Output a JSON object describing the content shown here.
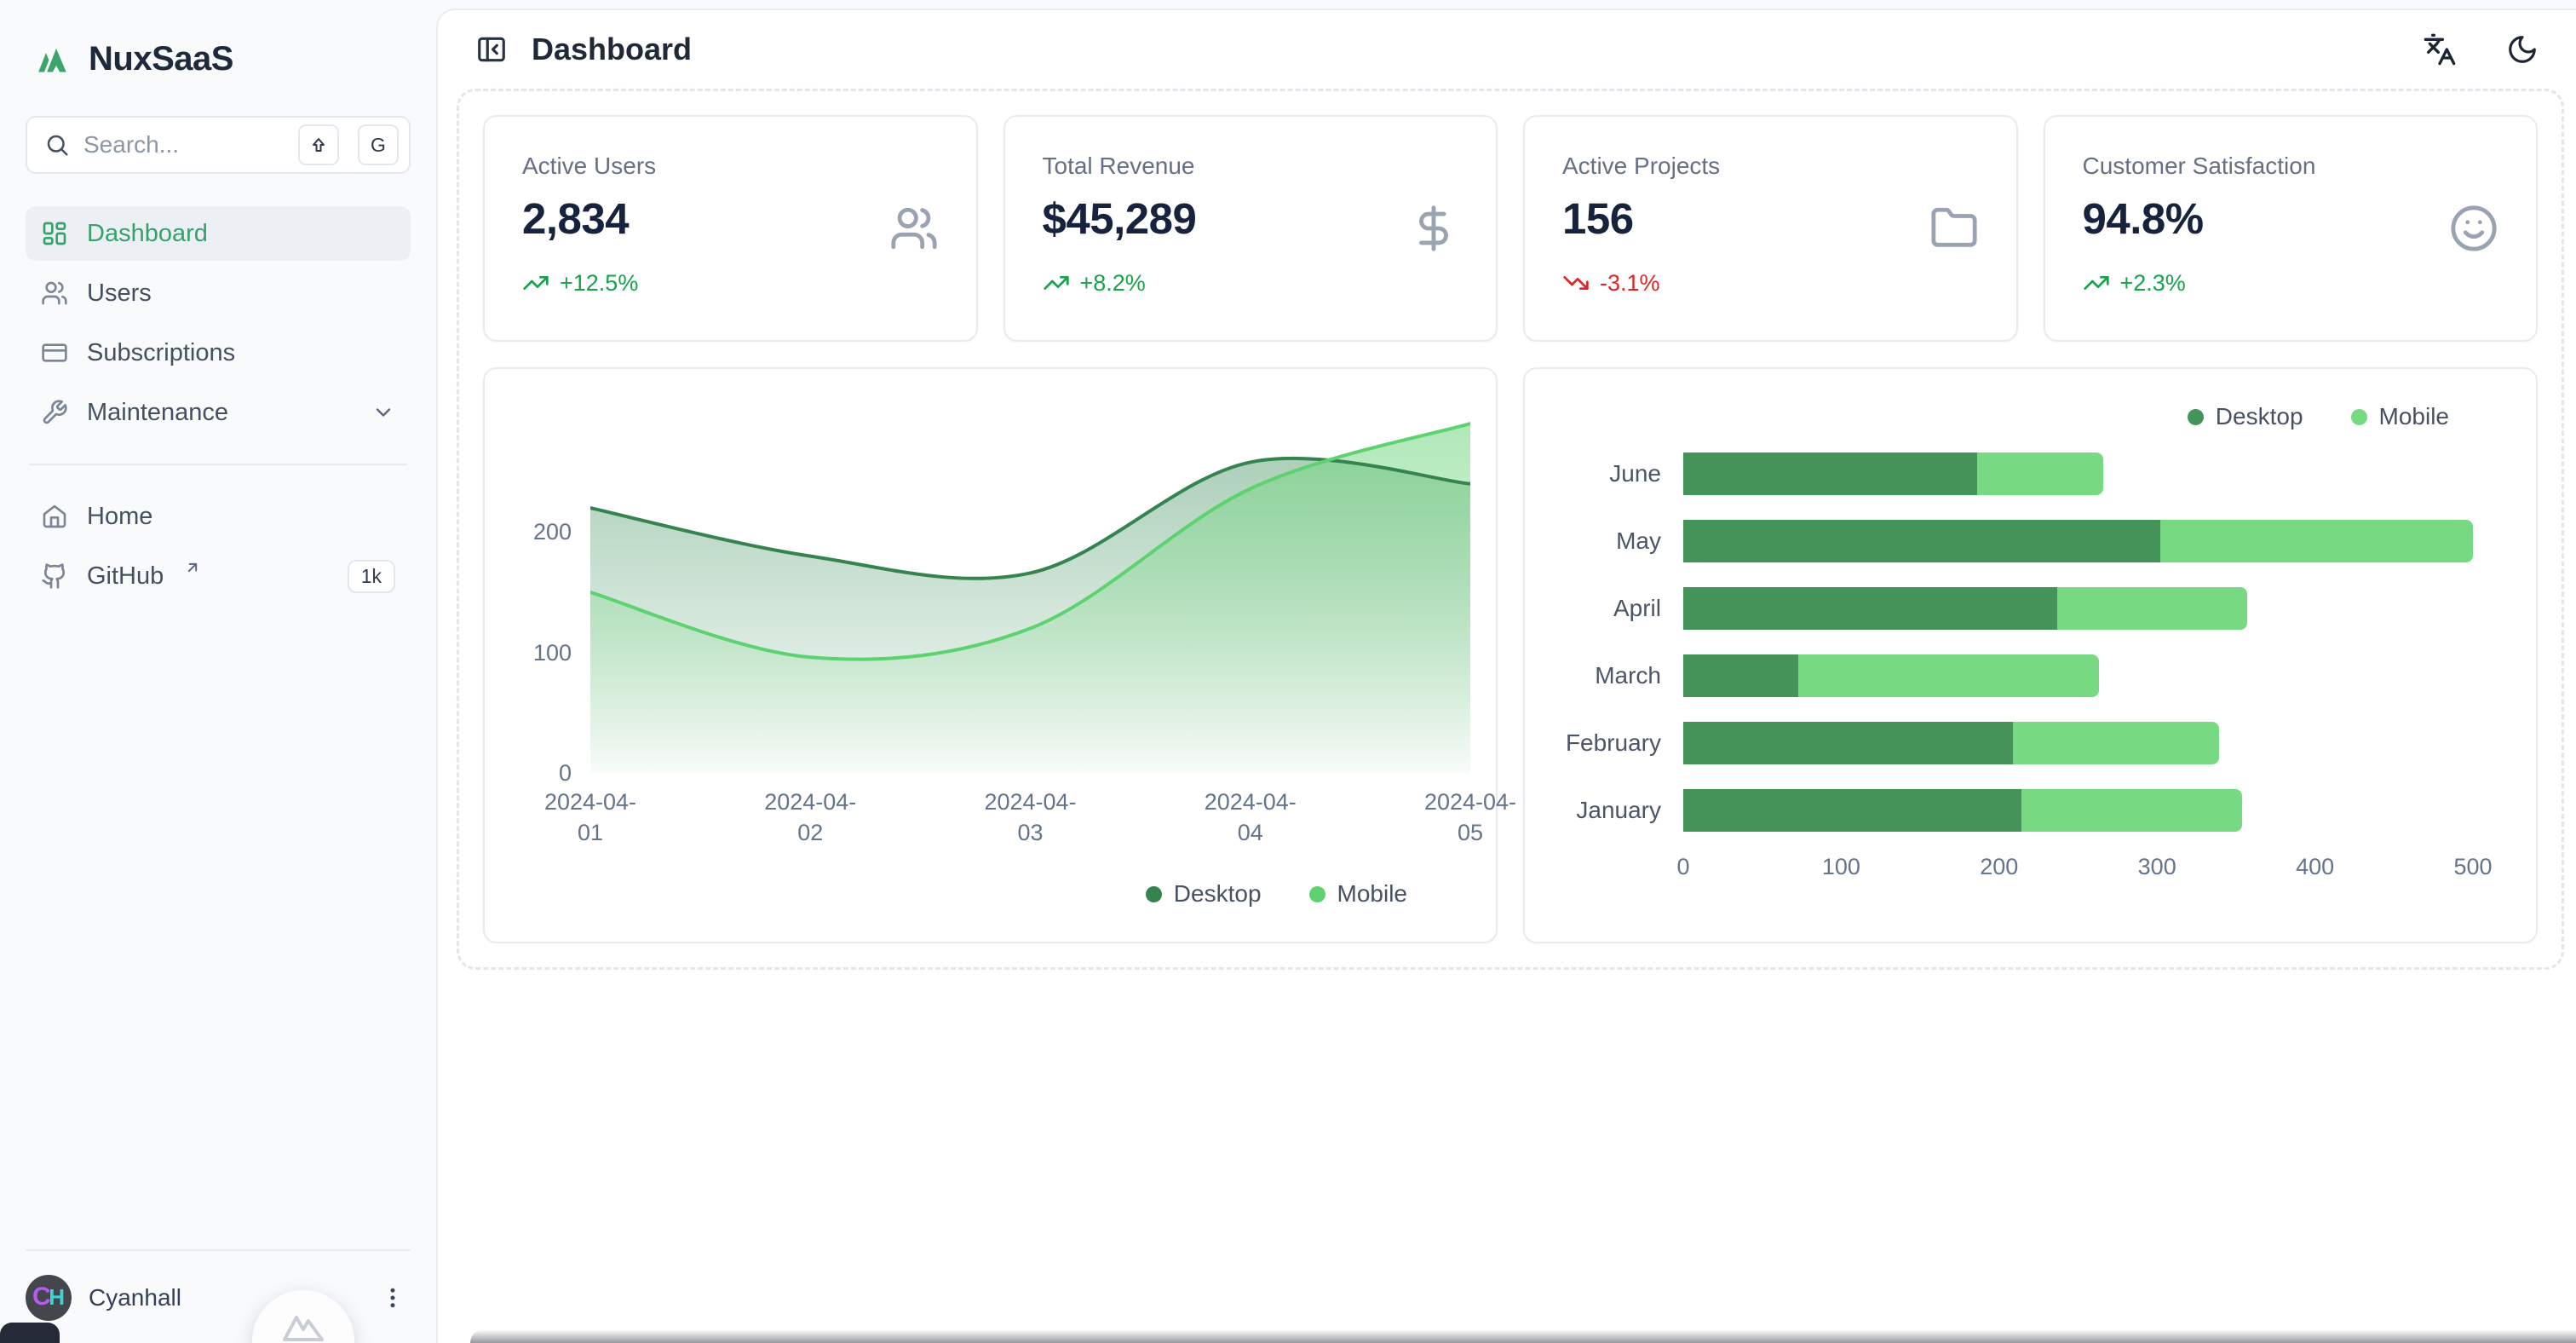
{
  "brand": {
    "name": "NuxSaaS"
  },
  "search": {
    "placeholder": "Search...",
    "shortcut": {
      "modifier": "⇧",
      "key": "G"
    }
  },
  "sidebar": {
    "nav": [
      {
        "label": "Dashboard",
        "icon": "dashboard-grid",
        "active": true
      },
      {
        "label": "Users",
        "icon": "users",
        "active": false
      },
      {
        "label": "Subscriptions",
        "icon": "credit-card",
        "active": false
      },
      {
        "label": "Maintenance",
        "icon": "wrench",
        "active": false,
        "expandable": true
      }
    ],
    "secondary": [
      {
        "label": "Home",
        "icon": "home"
      },
      {
        "label": "GitHub",
        "icon": "github",
        "badge": "1k",
        "external": true
      }
    ],
    "user": {
      "name": "Cyanhall",
      "initials": "CH"
    }
  },
  "header": {
    "title": "Dashboard",
    "actions": [
      {
        "icon": "languages"
      },
      {
        "icon": "moon"
      }
    ]
  },
  "stats": [
    {
      "label": "Active Users",
      "value": "2,834",
      "delta": "+12.5%",
      "trend": "up",
      "icon": "users"
    },
    {
      "label": "Total Revenue",
      "value": "$45,289",
      "delta": "+8.2%",
      "trend": "up",
      "icon": "dollar-sign"
    },
    {
      "label": "Active Projects",
      "value": "156",
      "delta": "-3.1%",
      "trend": "down",
      "icon": "folder"
    },
    {
      "label": "Customer Satisfaction",
      "value": "94.8%",
      "delta": "+2.3%",
      "trend": "up",
      "icon": "smile"
    }
  ],
  "chart_data": [
    {
      "type": "area",
      "x": [
        "2024-04-01",
        "2024-04-02",
        "2024-04-03",
        "2024-04-04",
        "2024-04-05"
      ],
      "series": [
        {
          "name": "Desktop",
          "color": "#35834f",
          "fill": "#3a8f58",
          "values": [
            220,
            180,
            166,
            258,
            240
          ]
        },
        {
          "name": "Mobile",
          "color": "#5ed271",
          "fill": "#6fd67d",
          "values": [
            150,
            96,
            120,
            236,
            290
          ]
        }
      ],
      "y_ticks": [
        0,
        100,
        200
      ],
      "ylim": [
        0,
        300
      ],
      "grid": false,
      "legend_position": "bottom-right"
    },
    {
      "type": "bar",
      "orientation": "horizontal",
      "stacked": true,
      "categories": [
        "June",
        "May",
        "April",
        "March",
        "February",
        "January"
      ],
      "series": [
        {
          "name": "Desktop",
          "color": "#44945a",
          "values": [
            186,
            305,
            237,
            73,
            209,
            214
          ]
        },
        {
          "name": "Mobile",
          "color": "#77d982",
          "values": [
            80,
            200,
            120,
            190,
            130,
            140
          ]
        }
      ],
      "x_ticks": [
        0,
        100,
        200,
        300,
        400,
        500
      ],
      "xlim": [
        0,
        500
      ],
      "grid": false,
      "legend_position": "top-right"
    }
  ],
  "colors": {
    "accent": "#36a269",
    "trend_up": "#16a34a",
    "trend_down": "#dc2626",
    "desktop": "#44945a",
    "mobile": "#77d982"
  }
}
